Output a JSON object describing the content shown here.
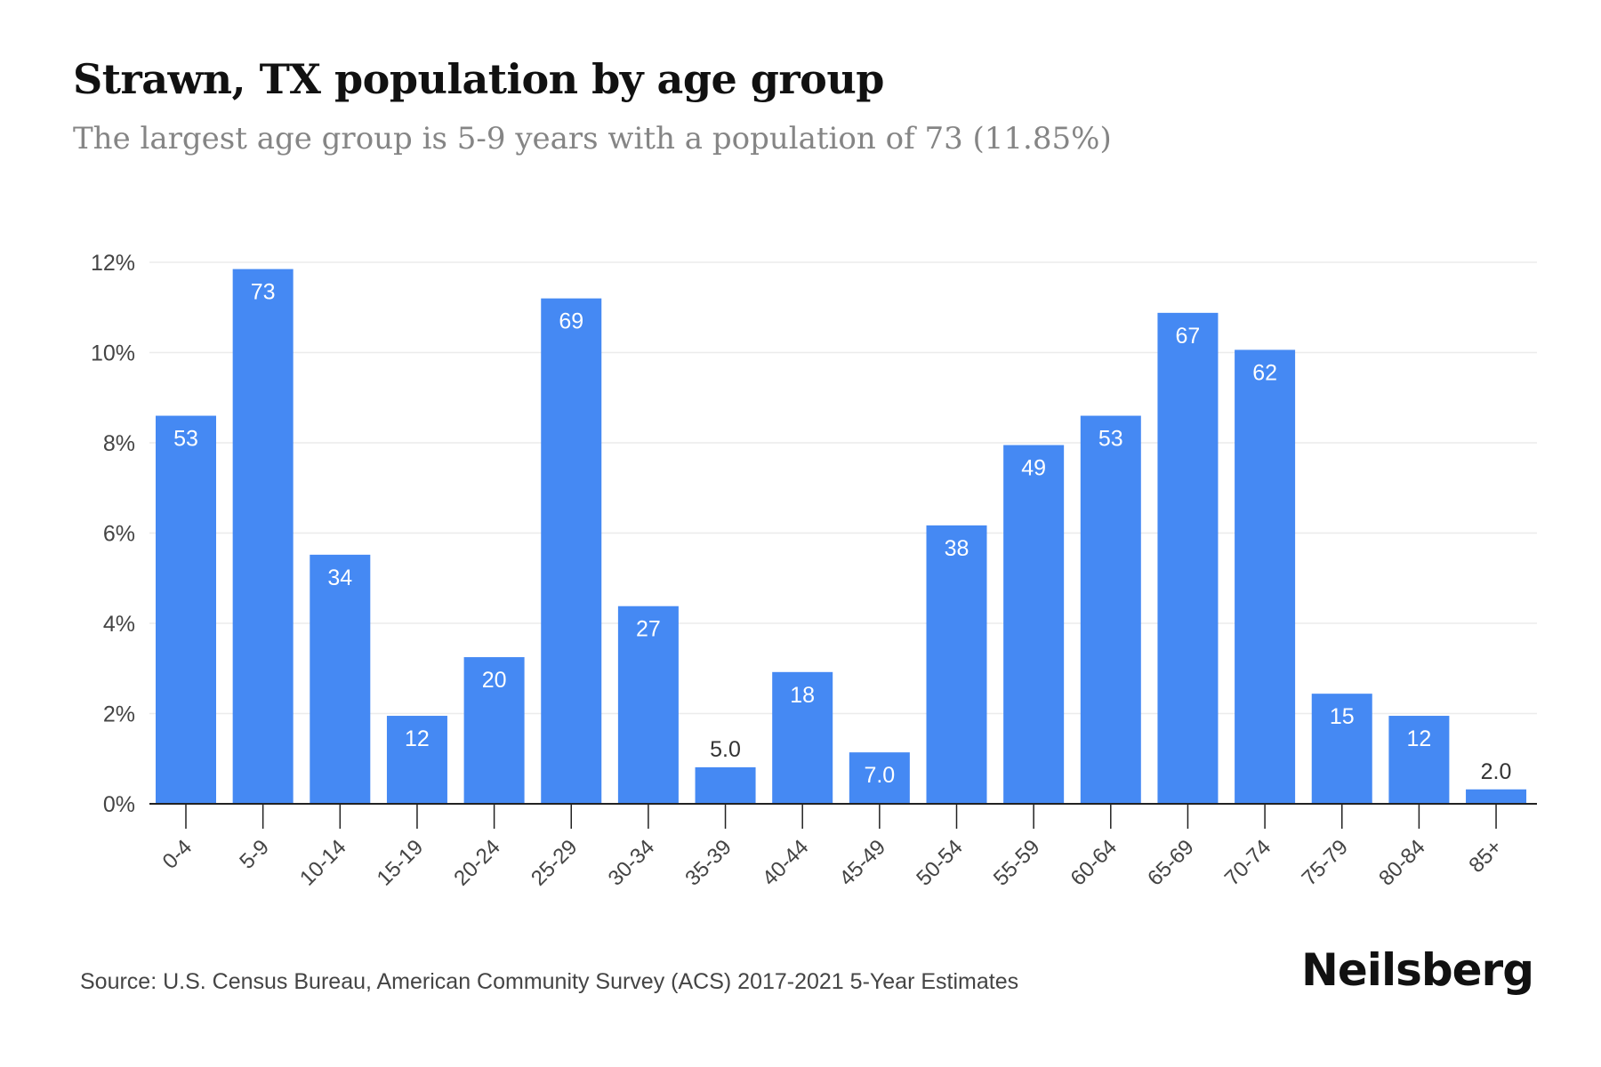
{
  "header": {
    "title": "Strawn, TX population by age group",
    "subtitle": "The largest age group is 5-9 years with a population of 73 (11.85%)"
  },
  "footer": {
    "source": "Source: U.S. Census Bureau, American Community Survey (ACS) 2017-2021 5-Year Estimates",
    "brand": "Neilsberg"
  },
  "colors": {
    "bar": "#4589F3",
    "grid": "#EBEBEB",
    "axis": "#222222",
    "bar_label": "#FFFFFF",
    "outside_label": "#333333",
    "tick_label": "#444444"
  },
  "chart_data": {
    "type": "bar",
    "title": "Strawn, TX population by age group",
    "subtitle": "The largest age group is 5-9 years with a population of 73 (11.85%)",
    "categories": [
      "0-4",
      "5-9",
      "10-14",
      "15-19",
      "20-24",
      "25-29",
      "30-34",
      "35-39",
      "40-44",
      "45-49",
      "50-54",
      "55-59",
      "60-64",
      "65-69",
      "70-74",
      "75-79",
      "80-84",
      "85+"
    ],
    "values": [
      8.6,
      11.85,
      5.52,
      1.95,
      3.25,
      11.2,
      4.38,
      0.81,
      2.92,
      1.14,
      6.17,
      7.95,
      8.6,
      10.88,
      10.06,
      2.44,
      1.95,
      0.32
    ],
    "data_labels": [
      "53",
      "73",
      "34",
      "12",
      "20",
      "69",
      "27",
      "5.0",
      "18",
      "7.0",
      "38",
      "49",
      "53",
      "67",
      "62",
      "15",
      "12",
      "2.0"
    ],
    "yticks": [
      0,
      2,
      4,
      6,
      8,
      10,
      12
    ],
    "ytick_labels": [
      "0%",
      "2%",
      "4%",
      "6%",
      "8%",
      "10%",
      "12%"
    ],
    "ylim": [
      0,
      12
    ],
    "xlabel": "",
    "ylabel": "",
    "grid": true,
    "legend": "none"
  }
}
